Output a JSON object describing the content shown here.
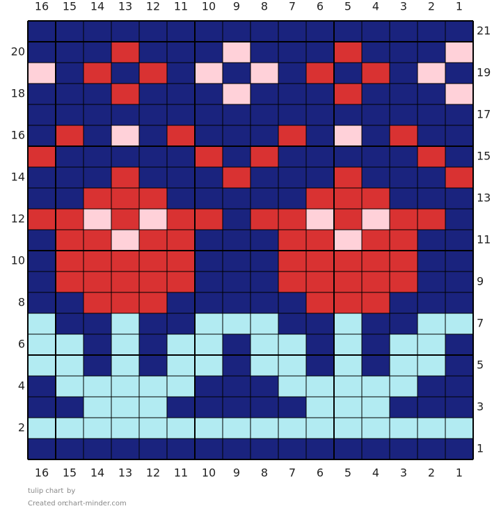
{
  "chart": {
    "title": "tulip chart",
    "by": "by",
    "created_prefix": "Created on",
    "site": "chart-minder.com",
    "columns": [
      16,
      15,
      14,
      13,
      12,
      11,
      10,
      9,
      8,
      7,
      6,
      5,
      4,
      3,
      2,
      1
    ],
    "rows": [
      21,
      20,
      19,
      18,
      17,
      16,
      15,
      14,
      13,
      12,
      11,
      10,
      9,
      8,
      7,
      6,
      5,
      4,
      3,
      2,
      1
    ],
    "palette": {
      "N": "#1a237e",
      "R": "#d93232",
      "P": "#ffd1d9",
      "L": "#b2ebf2"
    },
    "grid": [
      "NNNNNNNNNNNNNNNN",
      "NNNRNNNPNNNRNNNP",
      "PNRNRNPNPNRNRNPN",
      "NNNRNNNPNNNRNNNP",
      "NNNNNNNNNNNNNNNN",
      "NRNPNRNNNRNPNRNN",
      "RNNNNNRNRNNNNNRN",
      "NNNRNNNRNNNRNNNR",
      "NNRRRNNNNNRRRNNN",
      "RRPRPRRNRRPRPRRN",
      "NRRPRRNNNRRPRRNN",
      "NRRRRRNNNRRRRRNN",
      "NRRRRRNNNRRRRRNN",
      "NNRRRNNNNNRRRNNN",
      "LNNLNNLLLNNLNNLL",
      "LLNLNLLNLLNLNLLN",
      "LLNLNLLNLLNLNLLN",
      "NLLLLLNNNLLLLLNN",
      "NNLLLNNNNNLLLNNN",
      "LLLLLLLLLLLLLLLL",
      "NNNNNNNNNNNNNNNN"
    ]
  }
}
